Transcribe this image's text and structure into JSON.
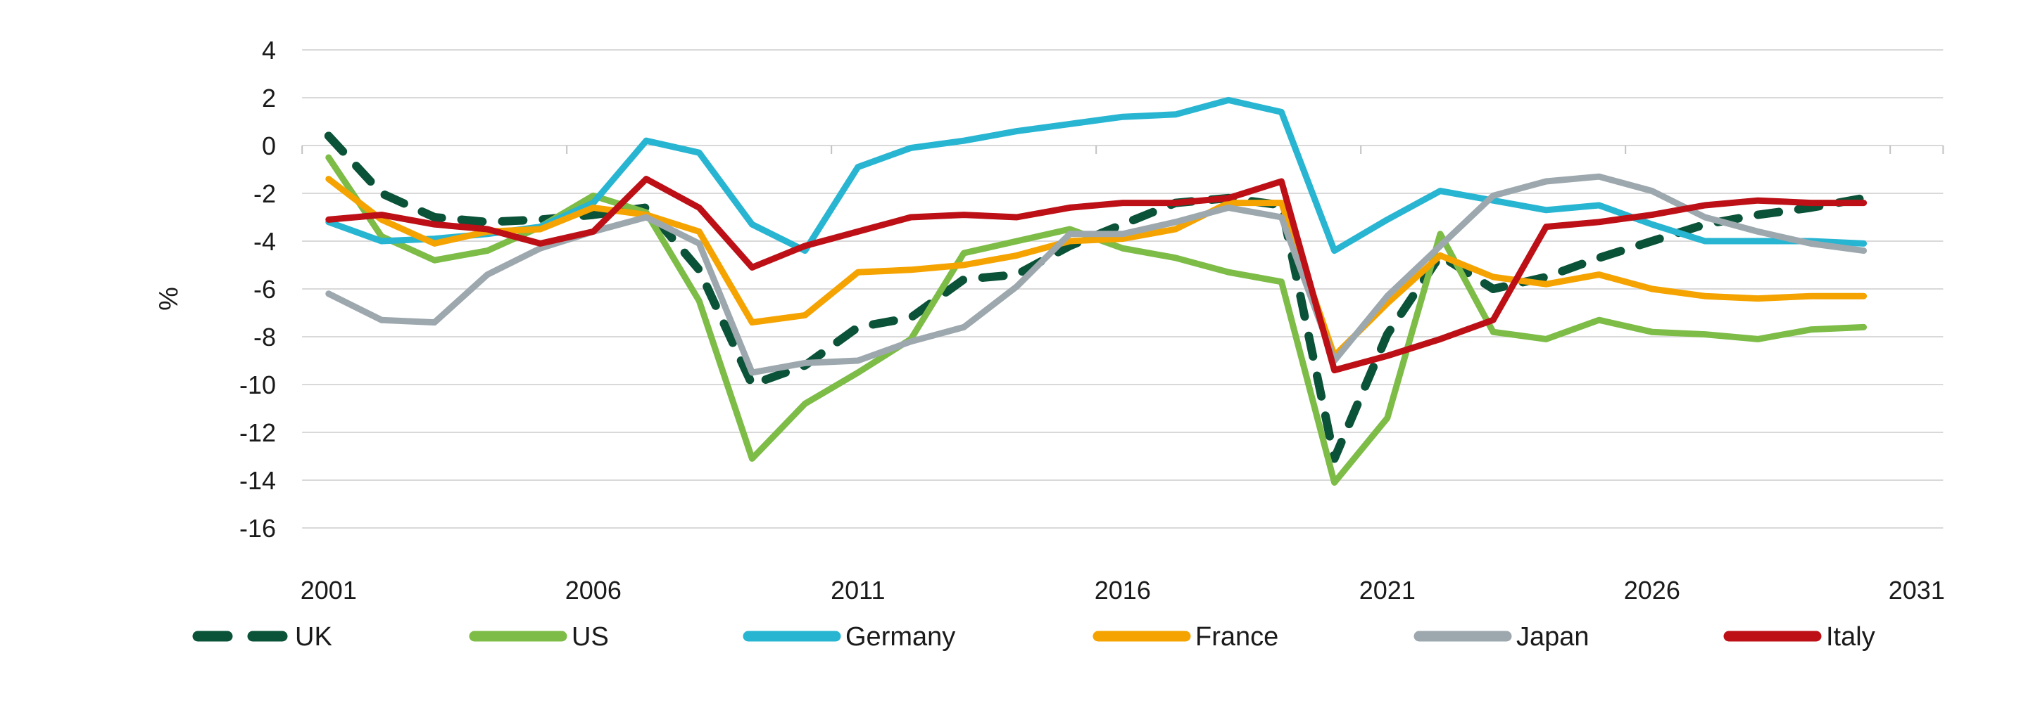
{
  "y_axis_label": "%",
  "chart_data": {
    "type": "line",
    "title": "",
    "xlabel": "",
    "ylabel": "%",
    "grid": "horizontal",
    "legend_position": "bottom",
    "xlim": [
      2000.5,
      2031.5
    ],
    "ylim": [
      -16,
      4
    ],
    "xtick_labels": [
      "2001",
      "2006",
      "2011",
      "2016",
      "2021",
      "2026",
      "2031"
    ],
    "xtick_years": [
      2001,
      2006,
      2011,
      2016,
      2021,
      2026,
      2031
    ],
    "ytick_values": [
      4,
      2,
      0,
      -2,
      -4,
      -6,
      -8,
      -10,
      -12,
      -14,
      -16
    ],
    "x_years": [
      2001,
      2002,
      2003,
      2004,
      2005,
      2006,
      2007,
      2008,
      2009,
      2010,
      2011,
      2012,
      2013,
      2014,
      2015,
      2016,
      2017,
      2018,
      2019,
      2020,
      2021,
      2022,
      2023,
      2024,
      2025,
      2026,
      2027,
      2028,
      2029,
      2030
    ],
    "colors": {
      "grid": "#d9d9d9",
      "axis_tick": "#c2c2c2",
      "text": "#1a1a1a"
    },
    "series": [
      {
        "name": "UK",
        "color": "#0a5238",
        "style": "dashed",
        "values": [
          0.4,
          -2.0,
          -3.0,
          -3.2,
          -3.1,
          -2.9,
          -2.6,
          -5.2,
          -10.0,
          -9.2,
          -7.6,
          -7.2,
          -5.6,
          -5.4,
          -4.2,
          -3.3,
          -2.4,
          -2.2,
          -2.5,
          -13.1,
          -7.9,
          -4.6,
          -6.0,
          -5.5,
          -4.7,
          -4.0,
          -3.3,
          -2.9,
          -2.6,
          -2.2
        ]
      },
      {
        "name": "US",
        "color": "#7dbc46",
        "style": "solid",
        "values": [
          -0.5,
          -3.8,
          -4.8,
          -4.4,
          -3.4,
          -2.1,
          -2.8,
          -6.5,
          -13.1,
          -10.8,
          -9.5,
          -8.1,
          -4.5,
          -4.0,
          -3.5,
          -4.3,
          -4.7,
          -5.3,
          -5.7,
          -14.1,
          -11.4,
          -3.7,
          -7.8,
          -8.1,
          -7.3,
          -7.8,
          -7.9,
          -8.1,
          -7.7,
          -7.6
        ]
      },
      {
        "name": "Germany",
        "color": "#27b5d2",
        "style": "solid",
        "values": [
          -3.2,
          -4.0,
          -3.9,
          -3.7,
          -3.4,
          -2.4,
          0.2,
          -0.3,
          -3.3,
          -4.4,
          -0.9,
          -0.1,
          0.2,
          0.6,
          0.9,
          1.2,
          1.3,
          1.9,
          1.4,
          -4.4,
          -3.1,
          -1.9,
          -2.3,
          -2.7,
          -2.5,
          -3.3,
          -4.0,
          -4.0,
          -4.0,
          -4.1
        ]
      },
      {
        "name": "France",
        "color": "#f5a300",
        "style": "solid",
        "values": [
          -1.4,
          -3.1,
          -4.1,
          -3.6,
          -3.5,
          -2.6,
          -2.9,
          -3.6,
          -7.4,
          -7.1,
          -5.3,
          -5.2,
          -5.0,
          -4.6,
          -4.0,
          -3.9,
          -3.5,
          -2.4,
          -2.4,
          -8.8,
          -6.6,
          -4.6,
          -5.5,
          -5.8,
          -5.4,
          -6.0,
          -6.3,
          -6.4,
          -6.3,
          -6.3
        ]
      },
      {
        "name": "Japan",
        "color": "#9da8ae",
        "style": "solid",
        "values": [
          -6.2,
          -7.3,
          -7.4,
          -5.4,
          -4.3,
          -3.6,
          -3.0,
          -4.1,
          -9.5,
          -9.1,
          -9.0,
          -8.2,
          -7.6,
          -5.9,
          -3.7,
          -3.7,
          -3.2,
          -2.6,
          -3.0,
          -9.0,
          -6.3,
          -4.2,
          -2.1,
          -1.5,
          -1.3,
          -1.9,
          -3.0,
          -3.6,
          -4.1,
          -4.4
        ]
      },
      {
        "name": "Italy",
        "color": "#bc1016",
        "style": "solid",
        "values": [
          -3.1,
          -2.9,
          -3.3,
          -3.5,
          -4.1,
          -3.6,
          -1.4,
          -2.6,
          -5.1,
          -4.2,
          -3.6,
          -3.0,
          -2.9,
          -3.0,
          -2.6,
          -2.4,
          -2.4,
          -2.2,
          -1.5,
          -9.4,
          -8.8,
          -8.1,
          -7.3,
          -3.4,
          -3.2,
          -2.9,
          -2.5,
          -2.3,
          -2.4,
          -2.4
        ]
      }
    ]
  }
}
